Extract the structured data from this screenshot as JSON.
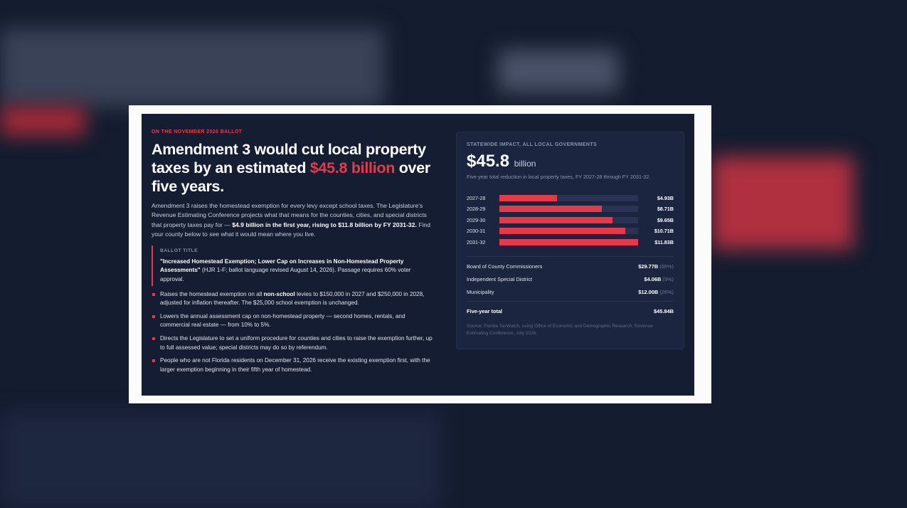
{
  "kicker": "ON THE NOVEMBER 2026 BALLOT",
  "headline": {
    "before": "Amendment 3 would cut local property taxes by an estimated",
    "highlight": "$45.8 billion",
    "after": "over five years."
  },
  "intro": {
    "text1": "Amendment 3 raises the homestead exemption for every levy except school taxes. The Legislature's Revenue Estimating Conference projects what that means for the counties, cities, and special districts that property taxes pay for —",
    "bold": "$4.9 billion in the first year, rising to $11.8 billion by FY 2031-32.",
    "text2": "Find your county below to see what it would mean where you live."
  },
  "ballot_title": {
    "label": "BALLOT TITLE",
    "quote": "\"Increased Homestead Exemption; Lower Cap on Increases in Non-Homestead Property Assessments\"",
    "text": "(HJR 1-F; ballot language revised August 14, 2026). Passage requires 60% voter approval."
  },
  "bullets": [
    {
      "before": "Raises the homestead exemption on all",
      "bold": "non-school",
      "after": "levies to $150,000 in 2027 and $250,000 in 2028, adjusted for inflation thereafter. The $25,000 school exemption is unchanged."
    },
    {
      "before": "Lowers the annual assessment cap on non-homestead property — second homes, rentals, and commercial real estate — from 10% to 5%."
    },
    {
      "before": "Directs the Legislature to set a uniform procedure for counties and cities to raise the exemption further, up to full assessed value; special districts may do so by referendum."
    },
    {
      "before": "People who are not Florida residents on December 31, 2026 receive the existing exemption first, with the larger exemption beginning in their fifth year of homestead."
    }
  ],
  "impact": {
    "label": "STATEWIDE IMPACT, ALL LOCAL GOVERNMENTS",
    "total": "$45.8",
    "unit": "billion",
    "note": "Five-year total reduction in local property taxes, FY 2027-28 through FY 2031-32.",
    "chart_data": {
      "type": "bar",
      "categories": [
        "2027-28",
        "2028-29",
        "2029-30",
        "2030-31",
        "2031-32"
      ],
      "values": [
        4.93,
        8.71,
        9.65,
        10.71,
        11.83
      ],
      "value_labels": [
        "$4.93B",
        "$8.71B",
        "$9.65B",
        "$10.71B",
        "$11.83B"
      ],
      "xlim": [
        0,
        11.83
      ],
      "color": "#e8394a"
    },
    "breakdown": [
      {
        "name": "Board of County Commissioners",
        "amount": "$29.77B",
        "share": "(65%)"
      },
      {
        "name": "Independent Special District",
        "amount": "$4.06B",
        "share": "(9%)"
      },
      {
        "name": "Municipality",
        "amount": "$12.00B",
        "share": "(26%)"
      }
    ],
    "total_row": {
      "name": "Five-year total",
      "amount": "$45.84B"
    },
    "source": "Source: Florida TaxWatch, using Office of Economic and Demographic Research, Revenue Estimating Conference, July 2026."
  }
}
